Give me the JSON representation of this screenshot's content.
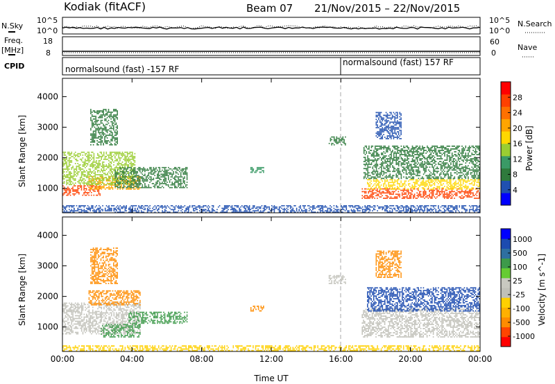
{
  "header": {
    "station": "Kodiak (fitACF)",
    "beam": "Beam 07",
    "date_range": "21/Nov/2015 – 22/Nov/2015"
  },
  "noise_panel": {
    "left_label": "N.Sky",
    "left_ticks": [
      "10^5",
      "10^0"
    ],
    "right_ticks": [
      "10^5",
      "10^0"
    ],
    "right_label": "N.Search"
  },
  "freq_panel": {
    "left_label_line1": "Freq.",
    "left_label_line2": "[MHz]",
    "left_ticks": [
      "18",
      "8"
    ],
    "right_ticks": [
      "60",
      "0"
    ],
    "right_label": "Nave"
  },
  "cpid_panel": {
    "label": "CPID",
    "segments": [
      {
        "text": "normalsound (fast) -157 RF",
        "start_hour": 0
      },
      {
        "text": "normalsound (fast) 157 RF",
        "start_hour": 16
      }
    ]
  },
  "xaxis": {
    "label": "Time UT",
    "ticks": [
      "00:00",
      "04:00",
      "08:00",
      "12:00",
      "16:00",
      "20:00",
      "00:00"
    ],
    "tick_hours": [
      0,
      4,
      8,
      12,
      16,
      20,
      24
    ]
  },
  "colors": {
    "power_scale": [
      "#0000ff",
      "#2050b0",
      "#2e7a3c",
      "#3a9a66",
      "#9acd32",
      "#ffd700",
      "#ffa500",
      "#ff7000",
      "#ff4000",
      "#ff0000"
    ],
    "velocity_scale": [
      "#ff0000",
      "#ff4500",
      "#ff8c00",
      "#ffb000",
      "#ffd000",
      "#c0c0b8",
      "#c8c8c0",
      "#66cc33",
      "#3d9a4a",
      "#2e6fa0",
      "#1c4bb0",
      "#0000ff"
    ]
  },
  "chart_data": [
    {
      "type": "heatmap",
      "name": "power",
      "ylabel": "Slant Range [km]",
      "yticks": [
        1000,
        2000,
        3000,
        4000
      ],
      "ylim": [
        200,
        4600
      ],
      "colorbar_label": "Power [dB]",
      "colorbar_ticks": [
        4,
        8,
        12,
        16,
        20,
        24,
        28
      ],
      "colorbar_range": [
        0,
        32
      ],
      "regions": [
        {
          "t0": 0.0,
          "t1": 2.2,
          "r0": 750,
          "r1": 1100,
          "v": 26
        },
        {
          "t0": 1.5,
          "t1": 4.5,
          "r0": 950,
          "r1": 1400,
          "v": 20
        },
        {
          "t0": 0.0,
          "t1": 4.2,
          "r0": 1100,
          "r1": 2200,
          "v": 13
        },
        {
          "t0": 3.0,
          "t1": 7.2,
          "r0": 1000,
          "r1": 1700,
          "v": 9
        },
        {
          "t0": 1.6,
          "t1": 3.2,
          "r0": 2400,
          "r1": 3600,
          "v": 8
        },
        {
          "t0": 10.8,
          "t1": 11.6,
          "r0": 1500,
          "r1": 1700,
          "v": 10
        },
        {
          "t0": 15.3,
          "t1": 16.3,
          "r0": 2400,
          "r1": 2700,
          "v": 8
        },
        {
          "t0": 17.2,
          "t1": 24.0,
          "r0": 650,
          "r1": 1000,
          "v": 27
        },
        {
          "t0": 17.5,
          "t1": 24.0,
          "r0": 950,
          "r1": 1300,
          "v": 17
        },
        {
          "t0": 17.3,
          "t1": 24.0,
          "r0": 1300,
          "r1": 2400,
          "v": 7
        },
        {
          "t0": 18.0,
          "t1": 19.5,
          "r0": 2600,
          "r1": 3500,
          "v": 6
        },
        {
          "t0": 0.0,
          "t1": 24.0,
          "r0": 200,
          "r1": 450,
          "v": 6
        }
      ]
    },
    {
      "type": "heatmap",
      "name": "velocity",
      "ylabel": "Slant Range [km]",
      "yticks": [
        1000,
        2000,
        3000,
        4000
      ],
      "ylim": [
        200,
        4600
      ],
      "colorbar_label": "Velocity [m s^-1]",
      "colorbar_ticks": [
        "-1000",
        "-500",
        "-100",
        "-25",
        "25",
        "100",
        "500",
        "1000"
      ],
      "regions": [
        {
          "t0": 0.0,
          "t1": 4.5,
          "r0": 750,
          "r1": 1800,
          "v": 0
        },
        {
          "t0": 1.5,
          "t1": 4.5,
          "r0": 1700,
          "r1": 2200,
          "v": -300
        },
        {
          "t0": 3.8,
          "t1": 7.2,
          "r0": 1100,
          "r1": 1500,
          "v": 150
        },
        {
          "t0": 2.2,
          "t1": 4.5,
          "r0": 650,
          "r1": 1100,
          "v": 120
        },
        {
          "t0": 1.6,
          "t1": 3.2,
          "r0": 2400,
          "r1": 3600,
          "v": -200
        },
        {
          "t0": 10.8,
          "t1": 11.6,
          "r0": 1500,
          "r1": 1700,
          "v": -300
        },
        {
          "t0": 15.3,
          "t1": 16.3,
          "r0": 2400,
          "r1": 2700,
          "v": 0
        },
        {
          "t0": 17.2,
          "t1": 24.0,
          "r0": 650,
          "r1": 1600,
          "v": 0
        },
        {
          "t0": 17.5,
          "t1": 24.0,
          "r0": 1500,
          "r1": 2300,
          "v": 600
        },
        {
          "t0": 18.0,
          "t1": 19.5,
          "r0": 2600,
          "r1": 3500,
          "v": -200
        },
        {
          "t0": 0.0,
          "t1": 24.0,
          "r0": 200,
          "r1": 400,
          "v": -60
        }
      ]
    }
  ]
}
